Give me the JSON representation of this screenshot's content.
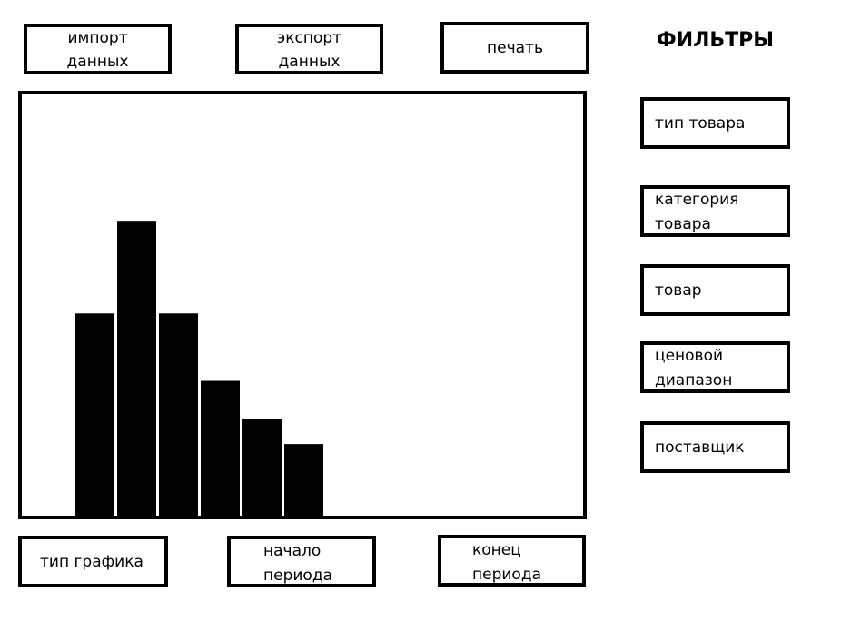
{
  "toolbar": {
    "import": "импорт данных",
    "export": "экспорт данных",
    "print": "печать"
  },
  "filters": {
    "title": "ФИЛЬТРЫ",
    "items": [
      "тип товара",
      "категория товара",
      "товар",
      "ценовой диапазон",
      "поставщик"
    ]
  },
  "controls": {
    "chart_type": "тип графика",
    "period_start": "начало периода",
    "period_end": "конец периода"
  },
  "chart_data": {
    "type": "bar",
    "values": [
      48,
      70,
      48,
      32,
      23,
      17
    ],
    "color": "#000000",
    "ylim": [
      0,
      100
    ]
  }
}
